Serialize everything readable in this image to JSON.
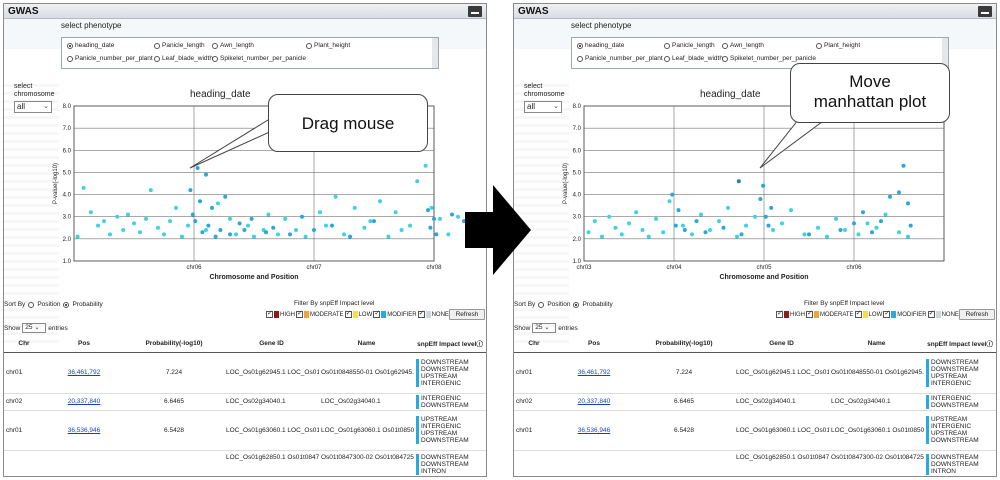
{
  "window": {
    "title": "GWAS"
  },
  "phenotype": {
    "heading": "select phenotype",
    "options": [
      "heading_date",
      "Panicle_length",
      "Awn_length",
      "Plant_height",
      "Panicle_number_per_plant",
      "Leaf_blade_width",
      "Spikelet_number_per_panicle"
    ],
    "selected": "heading_date"
  },
  "chromosome": {
    "label_line1": "select",
    "label_line2": "chromosome",
    "selected": "all"
  },
  "plot_title": "heading_date",
  "sort": {
    "label": "Sort By",
    "options": [
      "Position",
      "Probability"
    ],
    "selected": "Probability"
  },
  "filter": {
    "label": "Filter By snpEff Impact level",
    "levels": [
      {
        "label": "HIGH",
        "color": "#8b1a1a"
      },
      {
        "label": "MODERATE",
        "color": "#f0a23b"
      },
      {
        "label": "LOW",
        "color": "#f2e24a"
      },
      {
        "label": "MODIFIER",
        "color": "#27a9e1"
      },
      {
        "label": "NONE",
        "color": "#cfd6dd"
      }
    ],
    "refresh_label": "Refresh"
  },
  "show": {
    "prefix": "Show",
    "value": "25",
    "suffix": "entries"
  },
  "table": {
    "headers": [
      "Chr",
      "Pos",
      "Probability(-log10)",
      "Gene ID",
      "Name",
      "snpEff Impact level"
    ],
    "rows": [
      {
        "chr": "chr01",
        "pos": "36,461,792",
        "prob": "7.224",
        "gene": "LOC_Os01g62945.1\nLOC_Os01g62945.1\nOs01t0848766-00",
        "name": "Os01t0848550-01\nOs01g62945.1\nOs01t0848766-00",
        "impact": [
          "DOWNSTREAM",
          "DOWNSTREAM",
          "UPSTREAM",
          "INTERGENIC"
        ]
      },
      {
        "chr": "chr02",
        "pos": "20,337,840",
        "prob": "6.6465",
        "gene": "\nLOC_Os02g34040.1",
        "name": "\nLOC_Os02g34040.1",
        "impact": [
          "INTERGENIC",
          "DOWNSTREAM"
        ]
      },
      {
        "chr": "chr01",
        "pos": "36,536,946",
        "prob": "6.5428",
        "gene": "LOC_Os01g63060.1\n\nLOC_Os01g63060.1\nOs01t0850050-00",
        "name": "LOC_Os01g63060.1\n\nOs01t0850100-01\nOs01t0850050-00",
        "impact": [
          "UPSTREAM",
          "INTERGENIC",
          "UPSTREAM",
          "DOWNSTREAM"
        ]
      },
      {
        "chr": "",
        "pos": "",
        "prob": "",
        "gene": "LOC_Os01g62850.1\nOs01t0847250-00\nOs01t0847200-01\nLOC_Os01g62850.1",
        "name": "Os01t0847300-02\nOs01t0847250-00\nOs01t0847200-01\nLOC_Os01g62850.1",
        "impact": [
          "DOWNSTREAM",
          "DOWNSTREAM",
          "INTRON",
          "DOWNSTREAM"
        ]
      }
    ]
  },
  "callouts": {
    "left": "Drag mouse",
    "right_line1": "Move",
    "right_line2": "manhattan plot"
  },
  "chart_data": [
    {
      "type": "scatter",
      "title": "heading_date",
      "xlabel": "Chromosome and Position",
      "ylabel": "P-value(-log10)",
      "ylim": [
        1.0,
        8.0
      ],
      "yticks": [
        1.0,
        2.0,
        3.0,
        4.0,
        5.0,
        6.0,
        7.0,
        8.0
      ],
      "x_domain": [
        0,
        3
      ],
      "xticks": [
        {
          "label": "chr06",
          "x": 1.0
        },
        {
          "label": "chr07",
          "x": 2.0
        },
        {
          "label": "chr08",
          "x": 3.0
        }
      ],
      "grid": true,
      "series": [
        {
          "color": "#3fd2e0",
          "x": [
            0.03,
            0.08,
            0.14,
            0.2,
            0.25,
            0.3,
            0.36,
            0.41,
            0.45,
            0.5,
            0.55,
            0.6,
            0.64,
            0.7,
            0.75,
            0.8,
            0.85,
            0.9,
            0.95,
            1.1,
            1.2,
            1.3,
            1.35,
            1.45,
            1.5,
            1.58,
            1.62,
            1.7,
            1.76,
            1.85,
            1.93,
            2.05,
            2.1,
            2.18,
            2.25,
            2.34,
            2.42,
            2.47,
            2.55,
            2.62,
            2.68,
            2.73,
            2.8,
            2.86,
            2.93,
            2.98,
            3.05,
            3.12,
            3.2,
            3.3,
            3.4
          ],
          "y": [
            2.1,
            4.3,
            3.2,
            2.6,
            2.8,
            2.2,
            3.0,
            2.4,
            3.1,
            2.7,
            2.3,
            2.9,
            4.2,
            2.5,
            2.2,
            2.8,
            3.4,
            2.1,
            2.6,
            2.4,
            3.6,
            2.9,
            2.2,
            2.6,
            2.1,
            2.4,
            3.1,
            2.2,
            2.9,
            2.4,
            2.1,
            3.2,
            2.6,
            3.9,
            2.2,
            3.4,
            2.5,
            2.8,
            3.7,
            2.1,
            3.2,
            2.4,
            2.6,
            4.6,
            5.3,
            3.4,
            2.9,
            2.2,
            3.0,
            2.4,
            2.2
          ]
        },
        {
          "color": "#2aa8d9",
          "x": [
            0.97,
            0.99,
            1.01,
            1.03,
            1.05,
            1.07,
            1.1,
            1.12,
            1.15,
            1.18,
            1.22,
            1.26,
            1.3,
            1.38,
            1.42,
            1.48,
            1.6,
            1.66,
            1.8,
            1.9,
            2.0,
            2.15,
            2.3,
            2.5,
            2.95,
            2.97,
            3.0,
            3.02,
            3.15,
            3.25,
            3.35
          ],
          "y": [
            4.2,
            3.1,
            2.8,
            5.2,
            3.7,
            2.3,
            4.9,
            2.6,
            3.4,
            2.1,
            2.4,
            3.9,
            2.2,
            2.7,
            2.4,
            2.9,
            2.3,
            2.5,
            2.2,
            3.0,
            2.4,
            2.6,
            2.1,
            2.8,
            3.3,
            2.5,
            2.9,
            2.2,
            3.1,
            2.8,
            2.4
          ]
        }
      ]
    },
    {
      "type": "scatter",
      "title": "heading_date",
      "xlabel": "Chromosome and Position",
      "ylabel": "P-value(-log10)",
      "ylim": [
        1.0,
        8.0
      ],
      "yticks": [
        1.0,
        2.0,
        3.0,
        4.0,
        5.0,
        6.0,
        7.0,
        8.0
      ],
      "x_domain": [
        0,
        4
      ],
      "xticks": [
        {
          "label": "chr03",
          "x": 0.0
        },
        {
          "label": "chr04",
          "x": 1.0
        },
        {
          "label": "chr05",
          "x": 2.0
        },
        {
          "label": "chr06",
          "x": 3.0
        }
      ],
      "grid": true,
      "series": [
        {
          "color": "#3fd2e0",
          "x": [
            0.05,
            0.12,
            0.2,
            0.28,
            0.35,
            0.42,
            0.5,
            0.58,
            0.65,
            0.72,
            0.8,
            0.88,
            0.95,
            1.1,
            1.2,
            1.3,
            1.4,
            1.5,
            1.6,
            1.7,
            1.8,
            1.9,
            2.1,
            2.2,
            2.3,
            2.45,
            2.6,
            2.7,
            2.8,
            2.9,
            3.05,
            3.15,
            3.25,
            3.35,
            3.5,
            3.6
          ],
          "y": [
            2.3,
            2.8,
            2.1,
            3.0,
            2.5,
            2.2,
            2.7,
            3.2,
            2.4,
            2.1,
            2.9,
            2.3,
            3.7,
            2.6,
            2.2,
            3.1,
            2.4,
            2.8,
            3.4,
            2.1,
            2.6,
            3.0,
            2.4,
            2.7,
            3.3,
            2.2,
            2.5,
            2.1,
            2.9,
            2.4,
            2.2,
            2.7,
            2.5,
            3.1,
            2.3,
            2.1
          ]
        },
        {
          "color": "#2aa8d9",
          "x": [
            0.98,
            1.02,
            1.05,
            1.12,
            1.25,
            1.35,
            1.55,
            1.75,
            1.96,
            1.99,
            2.02,
            2.05,
            2.08,
            2.5,
            2.85,
            3.0,
            3.1,
            3.2,
            3.3,
            3.4,
            3.5,
            3.55,
            3.6,
            3.63
          ],
          "y": [
            4.0,
            2.6,
            3.3,
            2.4,
            2.8,
            2.3,
            2.5,
            2.2,
            3.8,
            4.4,
            3.0,
            2.6,
            3.4,
            2.2,
            2.4,
            2.7,
            3.2,
            2.3,
            2.8,
            3.9,
            4.1,
            5.3,
            3.6,
            2.6
          ]
        },
        {
          "color": "#1f7fb0",
          "x": [
            1.72
          ],
          "y": [
            4.6
          ]
        }
      ]
    }
  ]
}
